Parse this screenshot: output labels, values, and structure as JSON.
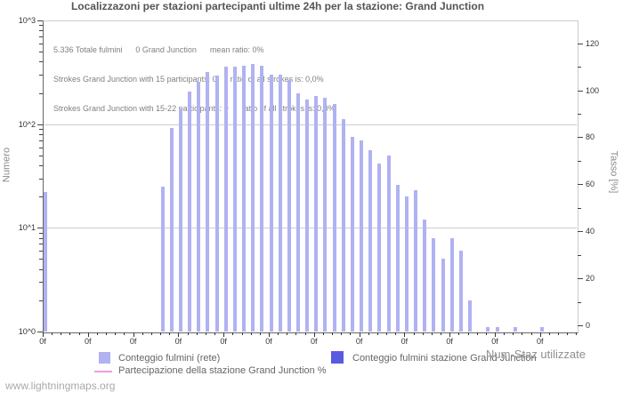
{
  "watermark": "www.lightningmaps.org",
  "chart_data": {
    "type": "bar",
    "title": "Localizzazoni per stazioni partecipanti ultime 24h per la stazione: Grand Junction",
    "annotations": [
      "5.336 Totale fulmini      0 Grand Junction      mean ratio: 0%",
      "Strokes Grand Junction with 15 participants: 0      ratio of all strokes is: 0,0%",
      "Strokes Grand Junction with 15-22 participants: 0      ratio of all strokes is: 0,0%"
    ],
    "x_axis": {
      "label": "Num-Staz utilizzate",
      "major_tick_label": "0f",
      "minor_tick_count": 60,
      "major_tick_every": 5
    },
    "y_left": {
      "label": "Numero",
      "scale": "log",
      "tick_labels_top_to_bottom": [
        "10^3",
        "10^2",
        "10^1",
        "10^0"
      ],
      "range": [
        1,
        1000
      ],
      "grid": true
    },
    "y_right": {
      "label": "Tasso [%]",
      "tick_labels": [
        "0",
        "20",
        "40",
        "60",
        "80",
        "100",
        "120"
      ],
      "minor_step": 10,
      "range": [
        0,
        120
      ]
    },
    "series": [
      {
        "name": "Conteggio fulmini (rete)",
        "color": "#b0b2f2",
        "points": [
          [
            0,
            22
          ],
          [
            13,
            25
          ],
          [
            14,
            91
          ],
          [
            15,
            142
          ],
          [
            16,
            206
          ],
          [
            17,
            256
          ],
          [
            18,
            316
          ],
          [
            19,
            295
          ],
          [
            20,
            355
          ],
          [
            21,
            360
          ],
          [
            22,
            365
          ],
          [
            23,
            380
          ],
          [
            24,
            365
          ],
          [
            25,
            300
          ],
          [
            26,
            300
          ],
          [
            27,
            264
          ],
          [
            28,
            197
          ],
          [
            29,
            173
          ],
          [
            30,
            187
          ],
          [
            31,
            178
          ],
          [
            32,
            157
          ],
          [
            33,
            112
          ],
          [
            34,
            76
          ],
          [
            35,
            70
          ],
          [
            36,
            56
          ],
          [
            37,
            42
          ],
          [
            38,
            50
          ],
          [
            39,
            26
          ],
          [
            40,
            20
          ],
          [
            41,
            23
          ],
          [
            42,
            12
          ],
          [
            43,
            8
          ],
          [
            44,
            5
          ],
          [
            45,
            8
          ],
          [
            46,
            6
          ],
          [
            47,
            2
          ],
          [
            49,
            1
          ],
          [
            50,
            1
          ],
          [
            52,
            1
          ],
          [
            55,
            1
          ]
        ]
      },
      {
        "name": "Conteggio fulmini stazione Grand Junction",
        "color": "#5a5ae0",
        "points": []
      },
      {
        "name": "Partecipazione della stazione Grand Junction %",
        "color": "#e79fe3",
        "points": []
      }
    ],
    "legend": {
      "items": [
        {
          "label": "Conteggio fulmini (rete)",
          "swatch": "square",
          "color": "#b0b2f2"
        },
        {
          "label": "Conteggio fulmini stazione Grand Junction",
          "swatch": "square",
          "color": "#5a5ae0"
        },
        {
          "label": "Partecipazione della stazione Grand Junction %",
          "swatch": "line",
          "color": "#e79fe3"
        }
      ]
    }
  }
}
